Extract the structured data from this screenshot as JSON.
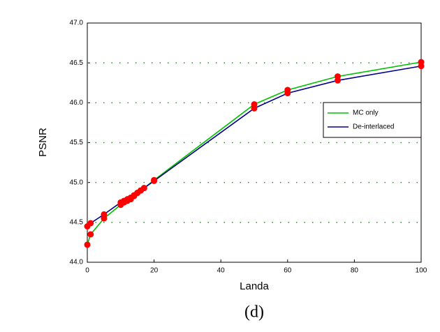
{
  "chart_data": {
    "type": "line",
    "x_label": "Landa",
    "y_label": "PSNR",
    "caption": "(d)",
    "x": [
      0,
      1,
      5,
      10,
      11,
      12,
      13,
      14,
      15,
      16,
      17,
      20,
      50,
      60,
      75,
      100
    ],
    "series": [
      {
        "name": "MC only",
        "color": "#00c000",
        "values": [
          44.22,
          44.35,
          44.55,
          44.72,
          44.75,
          44.77,
          44.79,
          44.83,
          44.87,
          44.9,
          44.93,
          45.03,
          45.98,
          46.16,
          46.33,
          46.51
        ]
      },
      {
        "name": "De-interlaced",
        "color": "#00008b",
        "values": [
          44.45,
          44.49,
          44.6,
          44.75,
          44.77,
          44.79,
          44.81,
          44.84,
          44.87,
          44.9,
          44.93,
          45.02,
          45.93,
          46.12,
          46.28,
          46.46
        ]
      }
    ],
    "marker_color": "#ff0000",
    "xlim": [
      0,
      100
    ],
    "xticks": [
      0,
      20,
      40,
      60,
      80,
      100
    ],
    "ylim": [
      44,
      47
    ],
    "yticks": [
      {
        "value": 44,
        "label": "44.0"
      },
      {
        "value": 44.5,
        "label": "44.5"
      },
      {
        "value": 45,
        "label": "45.0"
      },
      {
        "value": 45.5,
        "label": "45.5"
      },
      {
        "value": 46,
        "label": "46.0"
      },
      {
        "value": 46.5,
        "label": "46.5"
      },
      {
        "value": 47,
        "label": "47.0"
      }
    ],
    "grid": true,
    "grid_color": "#2e8b2e",
    "legend": "right"
  }
}
